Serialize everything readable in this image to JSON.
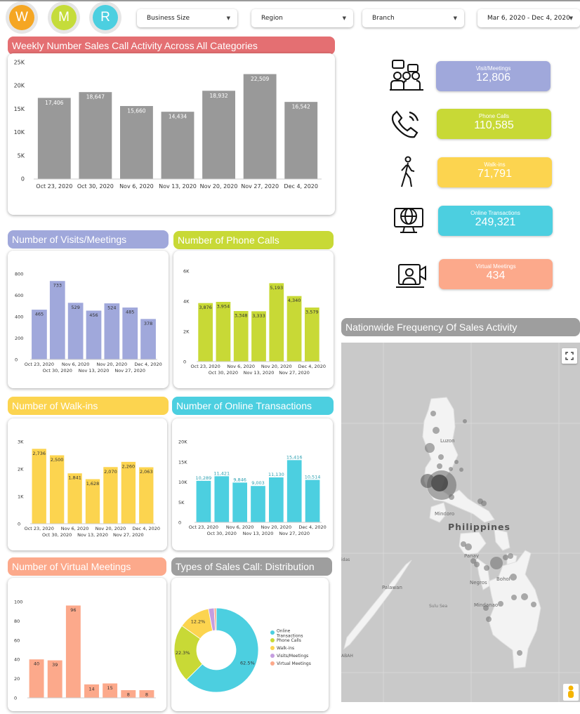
{
  "logos": [
    {
      "letter": "W",
      "color": "#f5a623"
    },
    {
      "letter": "M",
      "color": "#c5dc3a"
    },
    {
      "letter": "R",
      "color": "#4ccfe0"
    }
  ],
  "filters": {
    "business_size": "Business Size",
    "region": "Region",
    "branch": "Branch",
    "date_range": "Mar 6, 2020 - Dec 4, 2020"
  },
  "weekly": {
    "title": "Weekly Number Sales Call Activity  Across All Categories",
    "color": "#e46f72"
  },
  "kpis": [
    {
      "label": "Visit/Meetings",
      "value": "12,806",
      "color": "#a0a8db",
      "icon": "meeting-icon"
    },
    {
      "label": "Phone Calls",
      "value": "110,585",
      "color": "#c8d936",
      "icon": "phone-icon"
    },
    {
      "label": "Walk-ins",
      "value": "71,791",
      "color": "#fcd44f",
      "icon": "walking-person-icon"
    },
    {
      "label": "Online Transactions",
      "value": "249,321",
      "color": "#4ccfe0",
      "icon": "computer-globe-icon"
    },
    {
      "label": "Virtual Meetings",
      "value": "434",
      "color": "#fca98b",
      "icon": "video-call-icon"
    }
  ],
  "visits": {
    "title": "Number of Visits/Meetings",
    "color": "#a0a8db"
  },
  "phone": {
    "title": "Number of Phone Calls",
    "color": "#c8d936"
  },
  "walkins": {
    "title": "Number of Walk-ins",
    "color": "#fcd44f"
  },
  "online": {
    "title": "Number of Online Transactions",
    "color": "#4ccfe0"
  },
  "virtual": {
    "title": "Number of Virtual Meetings",
    "color": "#fca98b"
  },
  "distribution": {
    "title": "Types of Sales Call: Distribution",
    "color": "#9e9e9e"
  },
  "map": {
    "title": "Nationwide Frequency Of Sales Activity",
    "country": "Philippines",
    "places": [
      "Luzon",
      "Mindoro",
      "Panay",
      "Negros",
      "Bohol",
      "Palawan",
      "Sulu Sea",
      "Mindanao",
      "ABAH",
      "idas"
    ],
    "fullscreen_icon": "fullscreen-icon",
    "pegman_icon": "street-view-pegman-icon"
  },
  "chart_data": [
    {
      "id": "weekly",
      "type": "bar",
      "categories": [
        "Oct 23, 2020",
        "Oct 30, 2020",
        "Nov 6, 2020",
        "Nov 13, 2020",
        "Nov 20, 2020",
        "Nov 27, 2020",
        "Dec 4, 2020"
      ],
      "values": [
        17406,
        18647,
        15660,
        14434,
        18932,
        22509,
        16542
      ],
      "labels": [
        "17,406",
        "18,647",
        "15,660",
        "14,434",
        "18,932",
        "22,509",
        "16,542"
      ],
      "ylim": [
        0,
        25000
      ],
      "yticks": [
        0,
        5000,
        10000,
        15000,
        20000,
        25000
      ],
      "ytick_labels": [
        "0",
        "5K",
        "10K",
        "15K",
        "20K",
        "25K"
      ],
      "color": "#999999"
    },
    {
      "id": "visits",
      "type": "bar",
      "categories": [
        "Oct 23, 2020",
        "Oct 30, 2020",
        "Nov 6, 2020",
        "Nov 13, 2020",
        "Nov 20, 2020",
        "Nov 27, 2020",
        "Dec 4, 2020"
      ],
      "values": [
        465,
        733,
        529,
        456,
        524,
        485,
        378
      ],
      "labels": [
        "465",
        "733",
        "529",
        "456",
        "524",
        "485",
        "378"
      ],
      "ylim": [
        0,
        800
      ],
      "yticks": [
        0,
        200,
        400,
        600,
        800
      ],
      "ytick_labels": [
        "0",
        "200",
        "400",
        "600",
        "800"
      ],
      "color": "#a0a8db"
    },
    {
      "id": "phone",
      "type": "bar",
      "categories": [
        "Oct 23, 2020",
        "Oct 30, 2020",
        "Nov 6, 2020",
        "Nov 13, 2020",
        "Nov 20, 2020",
        "Nov 27, 2020",
        "Dec 4, 2020"
      ],
      "values": [
        3876,
        3954,
        3348,
        3333,
        5193,
        4340,
        3579
      ],
      "labels": [
        "3,876",
        "3,954",
        "3,348",
        "3,333",
        "5,193",
        "4,340",
        "3,579"
      ],
      "ylim": [
        0,
        6000
      ],
      "yticks": [
        0,
        2000,
        4000,
        6000
      ],
      "ytick_labels": [
        "0",
        "2K",
        "4K",
        "6K"
      ],
      "color": "#c8d936"
    },
    {
      "id": "walkins",
      "type": "bar",
      "categories": [
        "Oct 23, 2020",
        "Oct 30, 2020",
        "Nov 6, 2020",
        "Nov 13, 2020",
        "Nov 20, 2020",
        "Nov 27, 2020",
        "Dec 4, 2020"
      ],
      "values": [
        2736,
        2500,
        1841,
        1628,
        2070,
        2260,
        2063
      ],
      "labels": [
        "2,736",
        "2,500",
        "1,841",
        "1,628",
        "2,070",
        "2,260",
        "2,063"
      ],
      "ylim": [
        0,
        3000
      ],
      "yticks": [
        0,
        1000,
        2000,
        3000
      ],
      "ytick_labels": [
        "0",
        "1K",
        "2K",
        "3K"
      ],
      "color": "#fcd44f"
    },
    {
      "id": "online",
      "type": "bar",
      "categories": [
        "Oct 23, 2020",
        "Oct 30, 2020",
        "Nov 6, 2020",
        "Nov 13, 2020",
        "Nov 20, 2020",
        "Nov 27, 2020",
        "Dec 4, 2020"
      ],
      "values": [
        10289,
        11421,
        9846,
        9003,
        11130,
        15416,
        10514
      ],
      "labels": [
        "10,289",
        "11,421",
        "9,846",
        "9,003",
        "11,130",
        "15,416",
        "10,514"
      ],
      "ylim": [
        0,
        20000
      ],
      "yticks": [
        0,
        5000,
        10000,
        15000,
        20000
      ],
      "ytick_labels": [
        "0",
        "5K",
        "10K",
        "15K",
        "20K"
      ],
      "color": "#4ccfe0"
    },
    {
      "id": "virtual",
      "type": "bar",
      "categories": [
        "",
        "",
        "",
        "",
        "",
        "",
        ""
      ],
      "values": [
        40,
        39,
        96,
        14,
        15,
        8,
        8
      ],
      "labels": [
        "40",
        "39",
        "96",
        "14",
        "15",
        "8",
        "8"
      ],
      "ylim": [
        0,
        100
      ],
      "yticks": [
        0,
        20,
        40,
        60,
        80,
        100
      ],
      "ytick_labels": [
        "0",
        "20",
        "40",
        "60",
        "80",
        "100"
      ],
      "color": "#fca98b"
    },
    {
      "id": "distribution",
      "type": "pie",
      "donut": true,
      "slices": [
        {
          "name": "Online Transactions",
          "value": 62.5,
          "label": "62.5%",
          "color": "#4ccfe0"
        },
        {
          "name": "Phone Calls",
          "value": 22.3,
          "label": "22.3%",
          "color": "#c8d936"
        },
        {
          "name": "Walk-ins",
          "value": 12.2,
          "label": "12.2%",
          "color": "#fcd44f"
        },
        {
          "name": "Visits/Meetings",
          "value": 2.2,
          "label": "",
          "color": "#c59ee0"
        },
        {
          "name": "Virtual Meetings",
          "value": 0.8,
          "label": "",
          "color": "#fca98b"
        }
      ]
    }
  ]
}
